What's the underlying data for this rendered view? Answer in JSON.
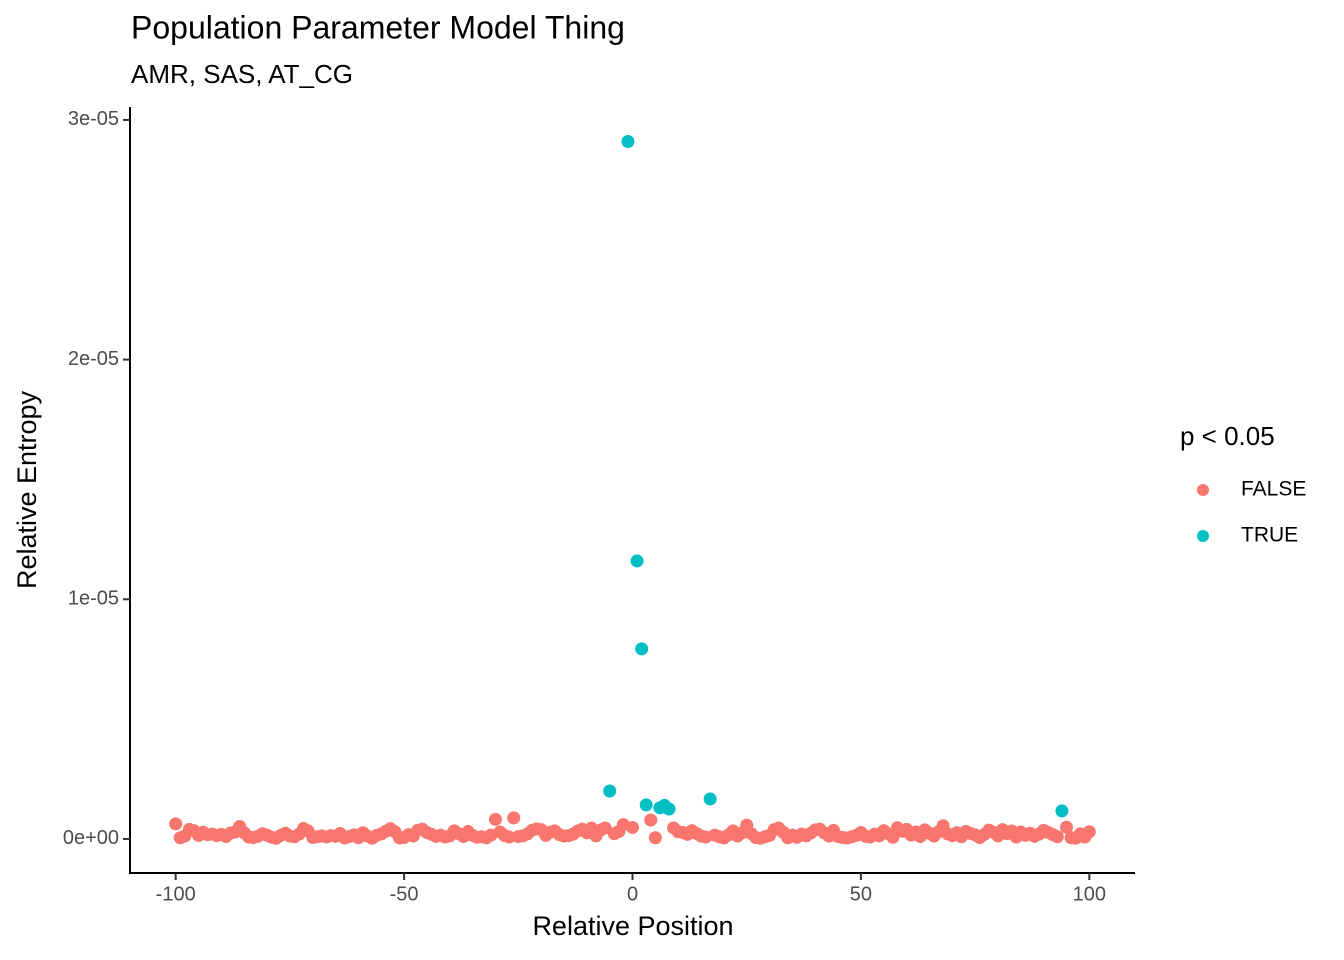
{
  "chart_data": {
    "type": "scatter",
    "title": "Population Parameter Model Thing",
    "subtitle": "AMR, SAS, AT_CG",
    "x_label": "Relative Position",
    "y_label": "Relative Entropy",
    "legend_title": "p < 0.05",
    "legend_position": "right",
    "grid": false,
    "xlim": [
      -110,
      110
    ],
    "xticks": [
      -100,
      -50,
      0,
      50,
      100
    ],
    "ylim": [
      -1.42e-06,
      3.054e-05
    ],
    "yticks": [
      {
        "value": 0,
        "label": "0e+00"
      },
      {
        "value": 1e-05,
        "label": "1e-05"
      },
      {
        "value": 2e-05,
        "label": "2e-05"
      },
      {
        "value": 3e-05,
        "label": "3e-05"
      }
    ],
    "series": [
      {
        "name": "FALSE",
        "color": "#F8766D",
        "x": [
          -100,
          -99,
          -98,
          -97,
          -96,
          -95,
          -94,
          -93,
          -92,
          -91,
          -90,
          -89,
          -88,
          -87,
          -86,
          -85,
          -84,
          -83,
          -82,
          -81,
          -80,
          -79,
          -78,
          -77,
          -76,
          -75,
          -74,
          -73,
          -72,
          -71,
          -70,
          -69,
          -68,
          -67,
          -66,
          -65,
          -64,
          -63,
          -62,
          -61,
          -60,
          -59,
          -58,
          -57,
          -56,
          -55,
          -54,
          -53,
          -52,
          -51,
          -50,
          -49,
          -48,
          -47,
          -46,
          -45,
          -44,
          -43,
          -42,
          -41,
          -40,
          -39,
          -38,
          -37,
          -36,
          -35,
          -34,
          -33,
          -32,
          -31,
          -30,
          -29,
          -28,
          -27,
          -26,
          -25,
          -24,
          -23,
          -22,
          -21,
          -20,
          -19,
          -18,
          -17,
          -16,
          -15,
          -14,
          -13,
          -12,
          -11,
          -10,
          -9,
          -8,
          -7,
          -6,
          -4,
          -3,
          -2,
          0,
          4,
          5,
          9,
          10,
          11,
          12,
          13,
          14,
          15,
          16,
          18,
          19,
          20,
          21,
          22,
          23,
          24,
          25,
          26,
          27,
          28,
          29,
          30,
          31,
          32,
          33,
          34,
          35,
          36,
          37,
          38,
          39,
          40,
          41,
          42,
          43,
          44,
          45,
          46,
          47,
          48,
          49,
          50,
          51,
          52,
          53,
          54,
          55,
          56,
          57,
          58,
          59,
          60,
          61,
          62,
          63,
          64,
          65,
          66,
          67,
          68,
          69,
          70,
          71,
          72,
          73,
          74,
          75,
          76,
          77,
          78,
          79,
          80,
          81,
          82,
          83,
          84,
          85,
          86,
          87,
          88,
          89,
          90,
          91,
          92,
          93,
          95,
          96,
          97,
          98,
          99,
          100
        ],
        "values": [
          6.3e-07,
          5e-08,
          1.2e-07,
          4e-07,
          3.5e-07,
          1.5e-07,
          2.8e-07,
          1.8e-07,
          2e-07,
          1.4e-07,
          1.9e-07,
          1e-07,
          2.5e-07,
          2.9e-07,
          5.2e-07,
          2.6e-07,
          8e-08,
          6e-08,
          1.1e-07,
          2.2e-07,
          1.6e-07,
          7e-08,
          3e-08,
          1.5e-07,
          2.4e-07,
          1.2e-07,
          9e-08,
          2e-07,
          4.4e-07,
          3.3e-07,
          6e-08,
          9e-08,
          1.3e-07,
          8e-08,
          1.4e-07,
          1.1e-07,
          2.3e-07,
          4e-08,
          1e-07,
          1.7e-07,
          5e-08,
          2.6e-07,
          1.2e-07,
          3e-08,
          1.5e-07,
          2.1e-07,
          3.2e-07,
          4.3e-07,
          3e-07,
          4e-08,
          6e-08,
          1.8e-07,
          1.2e-07,
          3.6e-07,
          4.1e-07,
          2.7e-07,
          1.9e-07,
          1.1e-07,
          1.6e-07,
          8e-08,
          1.3e-07,
          3.4e-07,
          2.2e-07,
          1e-07,
          3.1e-07,
          1.5e-07,
          7e-08,
          9e-08,
          5e-08,
          1.6e-07,
          8.2e-07,
          2.9e-07,
          1.4e-07,
          8e-08,
          8.8e-07,
          1e-07,
          1.3e-07,
          2.1e-07,
          3.6e-07,
          4.2e-07,
          3.9e-07,
          1.5e-07,
          2.8e-07,
          3.4e-07,
          1.8e-07,
          1.2e-07,
          1.4e-07,
          2e-07,
          3.3e-07,
          4.1e-07,
          2.6e-07,
          4.5e-07,
          1.3e-07,
          3.7e-07,
          4.6e-07,
          2.2e-07,
          3.1e-07,
          6e-07,
          4.8e-07,
          7.9e-07,
          5e-08,
          4.6e-07,
          3e-07,
          2.7e-07,
          1.9e-07,
          3.5e-07,
          2.3e-07,
          1.2e-07,
          8e-08,
          1.6e-07,
          9e-08,
          4e-08,
          1.7e-07,
          3.4e-07,
          1.2e-07,
          2.6e-07,
          5.8e-07,
          2.2e-07,
          6e-08,
          3e-08,
          9e-08,
          1.5e-07,
          3.9e-07,
          4.6e-07,
          2.8e-07,
          5e-08,
          1.6e-07,
          7e-08,
          2e-07,
          1.3e-07,
          2.4e-07,
          3.8e-07,
          4.1e-07,
          2.5e-07,
          1.2e-07,
          3.6e-07,
          1e-07,
          6e-08,
          4e-08,
          9e-08,
          1.5e-07,
          2.7e-07,
          1.1e-07,
          8e-08,
          2e-07,
          1.3e-07,
          3.5e-07,
          2.2e-07,
          7e-08,
          4.7e-07,
          3.2e-07,
          4e-07,
          1.6e-07,
          2.9e-07,
          1e-07,
          3.8e-07,
          2.4e-07,
          1.2e-07,
          3e-07,
          5.5e-07,
          2.1e-07,
          1.4e-07,
          2.6e-07,
          9e-08,
          3.1e-07,
          2.3e-07,
          1.7e-07,
          6e-08,
          1.9e-07,
          3.7e-07,
          2.8e-07,
          1.3e-07,
          3.9e-07,
          2.2e-07,
          3.3e-07,
          8e-08,
          2.9e-07,
          1.5e-07,
          2.4e-07,
          1.1e-07,
          2e-07,
          3.6e-07,
          2.7e-07,
          1.8e-07,
          9e-08,
          4.9e-07,
          5e-08,
          3e-08,
          2.1e-07,
          8e-08,
          3e-07
        ]
      },
      {
        "name": "TRUE",
        "color": "#00BFC4",
        "x": [
          -5,
          -1,
          1,
          2,
          3,
          6,
          7,
          8,
          17,
          94
        ],
        "values": [
          2e-06,
          2.91e-05,
          1.16e-05,
          7.93e-06,
          1.42e-06,
          1.3e-06,
          1.4e-06,
          1.25e-06,
          1.67e-06,
          1.17e-06
        ]
      }
    ]
  }
}
